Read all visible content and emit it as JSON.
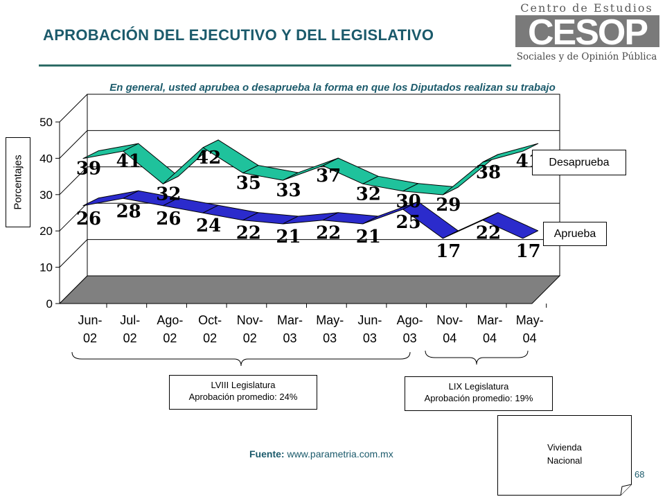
{
  "header": {
    "title": "APROBACIÓN DEL EJECUTIVO Y DEL LEGISLATIVO"
  },
  "logo": {
    "line1": "Centro de Estudios",
    "big": "CESOP",
    "line2": "Sociales y de Opinión Pública"
  },
  "subtitle": "En general, usted aprubea o desaprueba la forma en que los Diputados realizan su trabajo",
  "colors": {
    "accent": "#1b5a6b",
    "desaprueba": "#1fc29c",
    "aprueba": "#2b2bcc",
    "floor": "#808080"
  },
  "chart_data": {
    "type": "line",
    "ylabel": "Porcentajes",
    "ylim": [
      0,
      50
    ],
    "yticks": [
      "0",
      "10",
      "20",
      "30",
      "40",
      "50"
    ],
    "categories": [
      "Jun-\n02",
      "Jul-\n02",
      "Ago-\n02",
      "Oct-\n02",
      "Nov-\n02",
      "Mar-\n03",
      "May-\n03",
      "Jun-\n03",
      "Ago-\n03",
      "Nov-\n04",
      "Mar-\n04",
      "May-\n04"
    ],
    "series": [
      {
        "name": "Desaprueba",
        "values": [
          39,
          41,
          32,
          42,
          35,
          33,
          37,
          32,
          30,
          29,
          38,
          41
        ]
      },
      {
        "name": "Aprueba",
        "values": [
          26,
          28,
          26,
          24,
          22,
          21,
          22,
          21,
          25,
          17,
          22,
          17
        ]
      }
    ],
    "grid": true
  },
  "legislaturas": [
    {
      "name": "LVIII Legislatura",
      "detail": "Aprobación promedio: 24%"
    },
    {
      "name": "LIX Legislatura",
      "detail": "Aprobación promedio: 19%"
    }
  ],
  "source": {
    "label": "Fuente:",
    "url": "www.parametria.com.mx"
  },
  "note": {
    "line1": "Vivienda",
    "line2": "Nacional"
  },
  "page": "68"
}
